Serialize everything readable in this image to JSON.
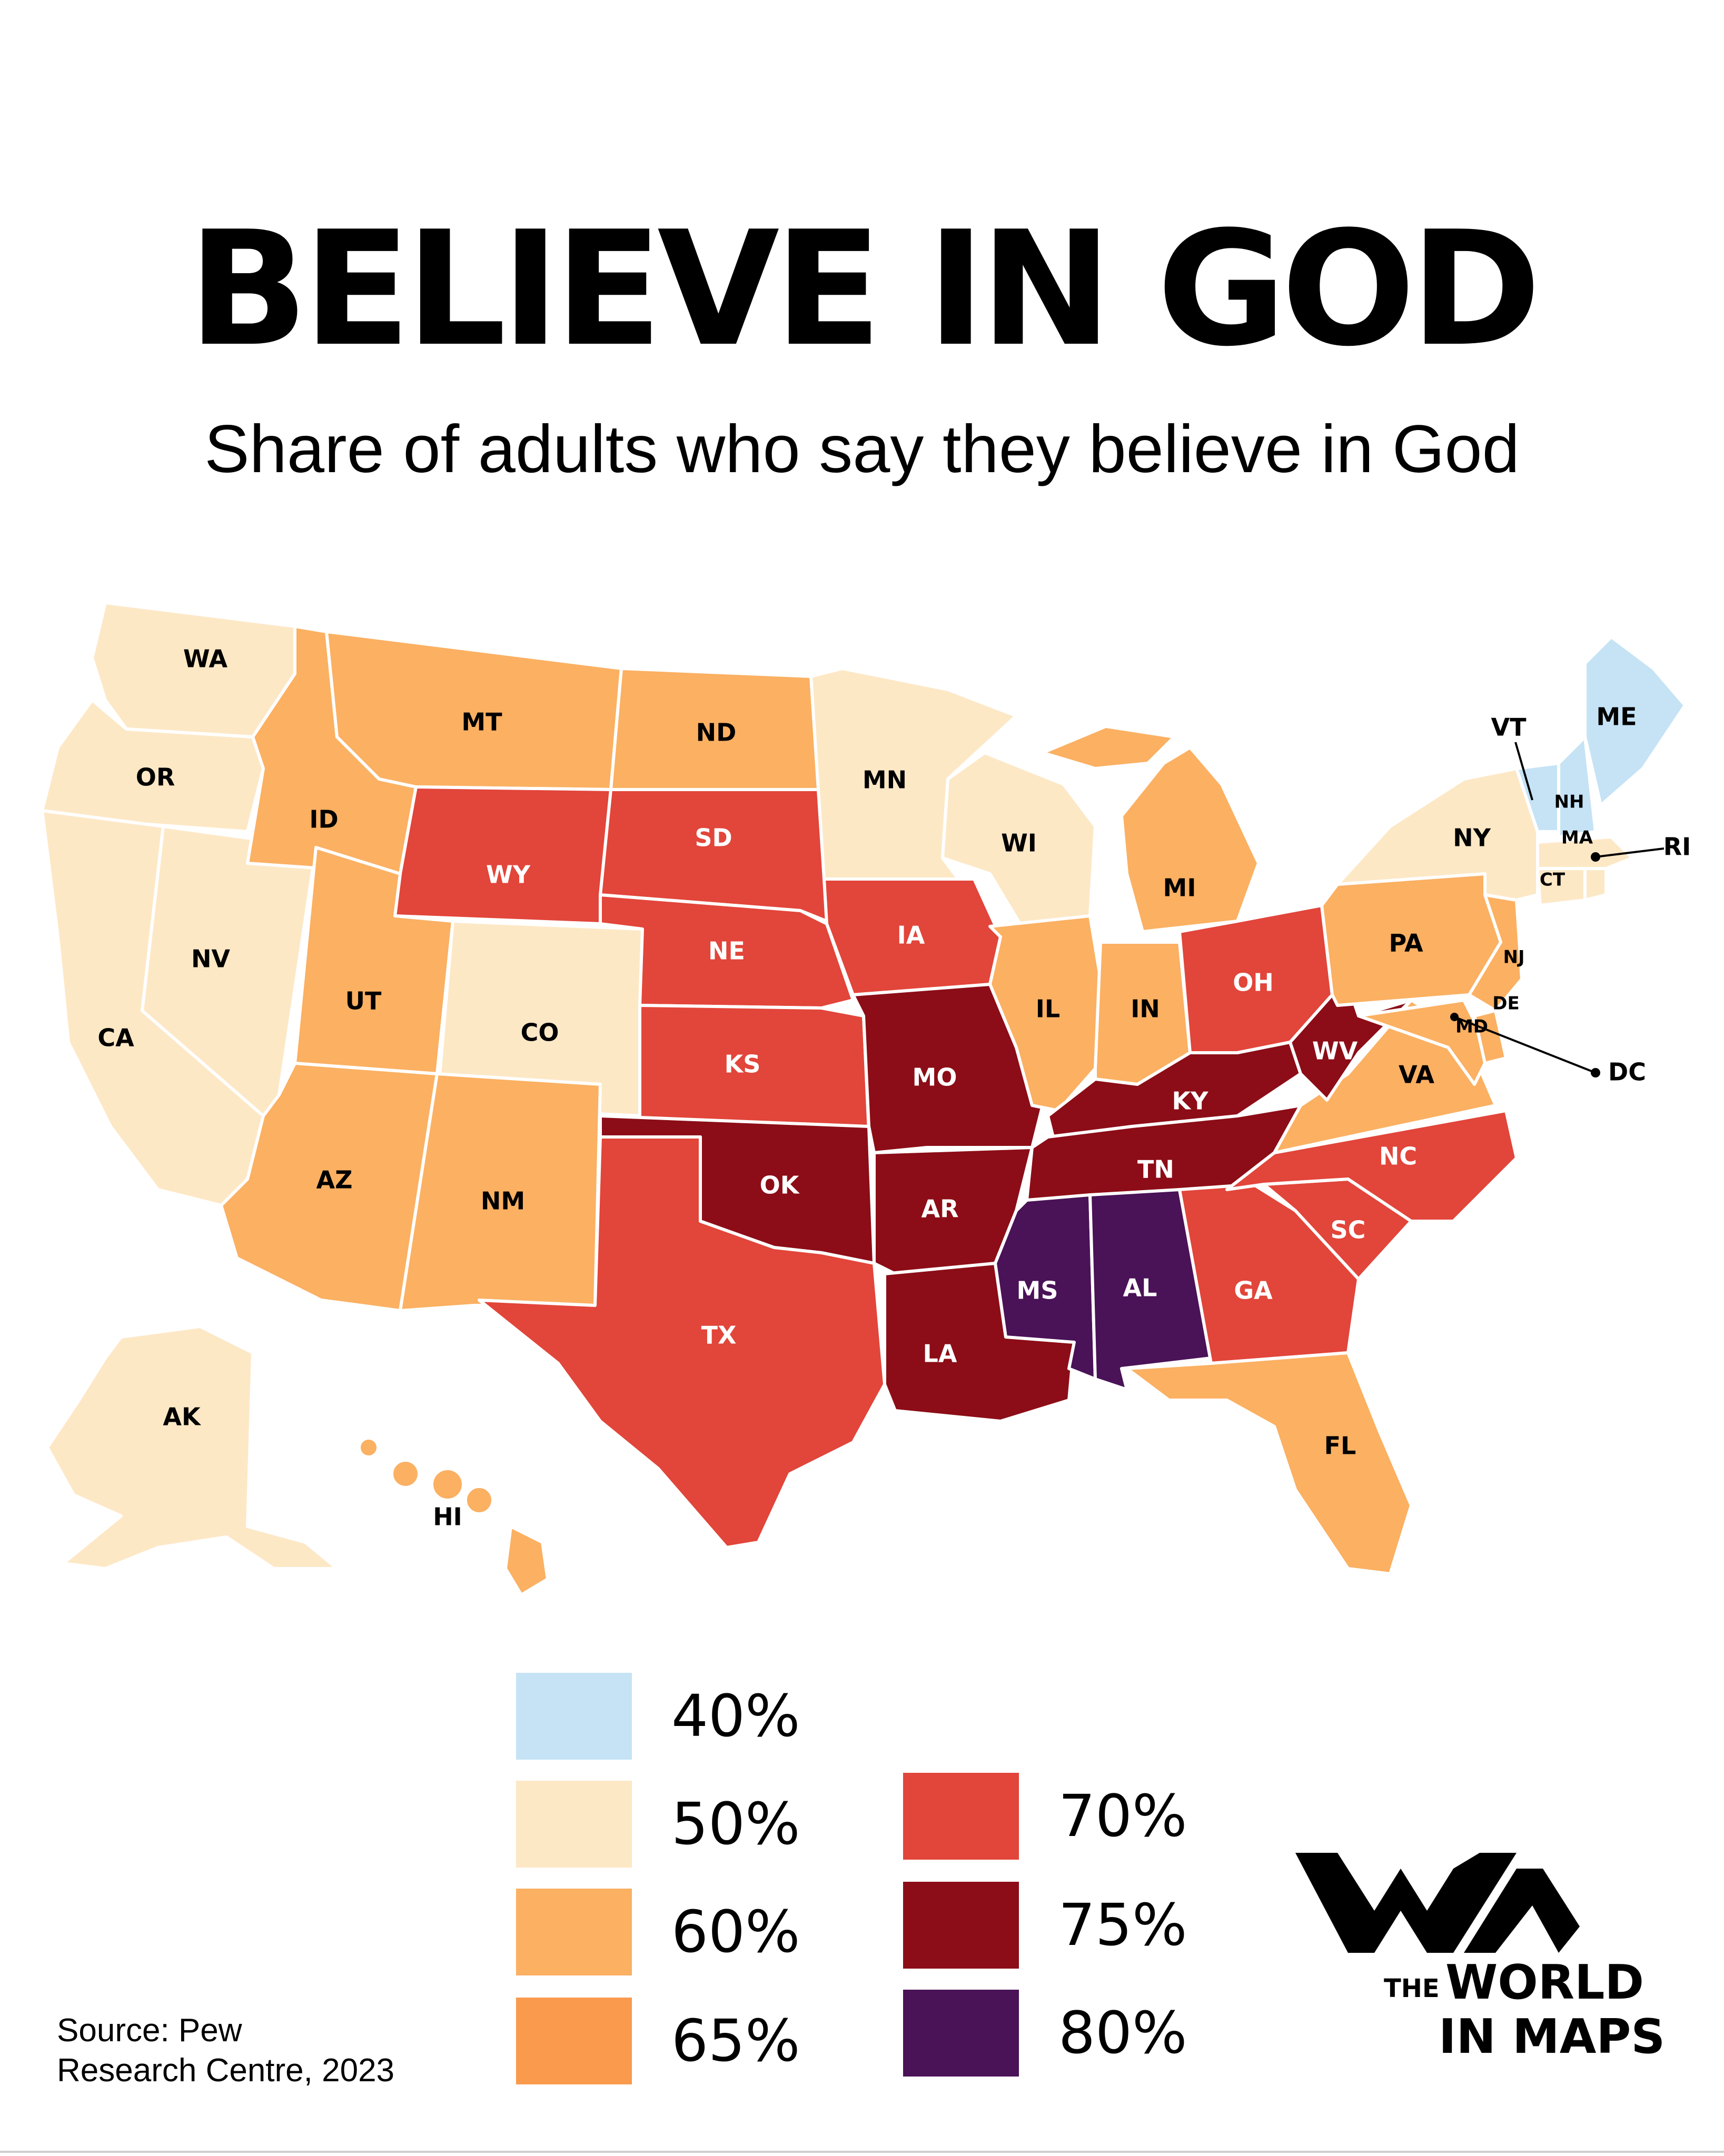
{
  "title": "BELIEVE IN GOD",
  "subtitle": "Share of adults who say they believe in God",
  "palette": {
    "p40": "#c5e3f5",
    "p50": "#fde8c6",
    "p60": "#fbb062",
    "p65": "#f99a4d",
    "p70": "#e2453a",
    "p75": "#8c0d17",
    "p80": "#4a1257"
  },
  "legend": [
    {
      "label": "40%",
      "color": "#c5e3f5"
    },
    {
      "label": "50%",
      "color": "#fde8c6"
    },
    {
      "label": "60%",
      "color": "#fbb062"
    },
    {
      "label": "65%",
      "color": "#f99a4d"
    },
    {
      "label": "70%",
      "color": "#e2453a"
    },
    {
      "label": "75%",
      "color": "#8c0d17"
    },
    {
      "label": "80%",
      "color": "#4a1257"
    }
  ],
  "states": {
    "WA": "50%",
    "OR": "50%",
    "CA": "50%",
    "NV": "50%",
    "CO": "50%",
    "MN": "50%",
    "WI": "50%",
    "NY": "50%",
    "MA": "50%",
    "CT": "50%",
    "RI": "50%",
    "AK": "50%",
    "ID": "60%",
    "MT": "60%",
    "ND": "60%",
    "UT": "60%",
    "AZ": "60%",
    "NM": "60%",
    "MI": "60%",
    "IL": "60%",
    "IN": "60%",
    "PA": "60%",
    "NJ": "60%",
    "DE": "60%",
    "MD": "60%",
    "VA": "60%",
    "FL": "60%",
    "HI": "60%",
    "VT": "40%",
    "NH": "40%",
    "ME": "40%",
    "WY": "70%",
    "SD": "70%",
    "NE": "70%",
    "KS": "70%",
    "IA": "70%",
    "TX": "70%",
    "OH": "70%",
    "NC": "70%",
    "SC": "70%",
    "GA": "70%",
    "OK": "75%",
    "MO": "75%",
    "AR": "75%",
    "LA": "75%",
    "KY": "75%",
    "TN": "75%",
    "WV": "75%",
    "MS": "80%",
    "AL": "80%",
    "DC": ""
  },
  "map_labels": [
    "WA",
    "OR",
    "CA",
    "NV",
    "ID",
    "MT",
    "WY",
    "UT",
    "AZ",
    "CO",
    "NM",
    "ND",
    "SD",
    "NE",
    "KS",
    "OK",
    "TX",
    "MN",
    "IA",
    "MO",
    "AR",
    "LA",
    "WI",
    "IL",
    "MI",
    "IN",
    "OH",
    "KY",
    "TN",
    "MS",
    "AL",
    "GA",
    "FL",
    "SC",
    "NC",
    "VA",
    "WV",
    "PA",
    "NY",
    "VT",
    "NH",
    "ME",
    "MA",
    "RI",
    "CT",
    "NJ",
    "DE",
    "MD",
    "DC",
    "AK",
    "HI"
  ],
  "source_line1": "Source: Pew",
  "source_line2": "Research Centre, 2023",
  "logo": {
    "the": "THE",
    "world": "WORLD",
    "in_maps": "IN MAPS",
    "icon": "wm-logo-icon"
  }
}
